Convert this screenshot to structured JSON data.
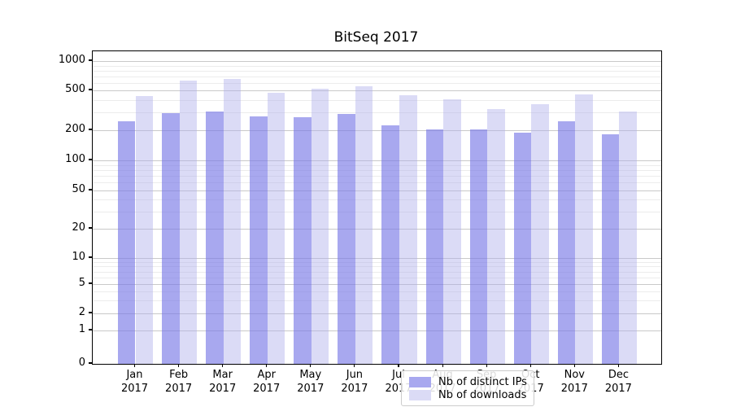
{
  "title": "BitSeq 2017",
  "year": "2017",
  "months": [
    "Jan",
    "Feb",
    "Mar",
    "Apr",
    "May",
    "Jun",
    "Jul",
    "Aug",
    "Sep",
    "Oct",
    "Nov",
    "Dec"
  ],
  "y_tick_labels": [
    "0",
    "1",
    "2",
    "5",
    "10",
    "20",
    "50",
    "100",
    "200",
    "500",
    "1000"
  ],
  "legend": {
    "items": [
      {
        "label": "Nb of distinct IPs",
        "color": "#a8a8ef"
      },
      {
        "label": "Nb of downloads",
        "color": "#dbdbf6"
      }
    ]
  },
  "colors": {
    "distinct_ips_bar": "rgba(121,121,230,0.65)",
    "downloads_bar": "rgba(175,175,235,0.45)",
    "major_grid": "#c9c9c9",
    "minor_grid": "#ececec"
  },
  "chart_data": {
    "type": "bar",
    "title": "BitSeq 2017",
    "categories": [
      "Jan 2017",
      "Feb 2017",
      "Mar 2017",
      "Apr 2017",
      "May 2017",
      "Jun 2017",
      "Jul 2017",
      "Aug 2017",
      "Sep 2017",
      "Oct 2017",
      "Nov 2017",
      "Dec 2017"
    ],
    "series": [
      {
        "name": "Nb of distinct IPs",
        "color": "#a8a8ef",
        "values": [
          244,
          299,
          305,
          277,
          272,
          291,
          226,
          203,
          204,
          191,
          247,
          182
        ]
      },
      {
        "name": "Nb of downloads",
        "color": "#dbdbf6",
        "values": [
          436,
          632,
          650,
          477,
          524,
          546,
          451,
          411,
          323,
          363,
          459,
          306
        ]
      }
    ],
    "xlabel": "",
    "ylabel": "",
    "yscale": "symlog",
    "yticks": [
      0,
      1,
      2,
      5,
      10,
      20,
      50,
      100,
      200,
      500,
      1000
    ],
    "ylim": [
      0,
      1300
    ],
    "grid": "horizontal",
    "legend_position": "lower center"
  }
}
